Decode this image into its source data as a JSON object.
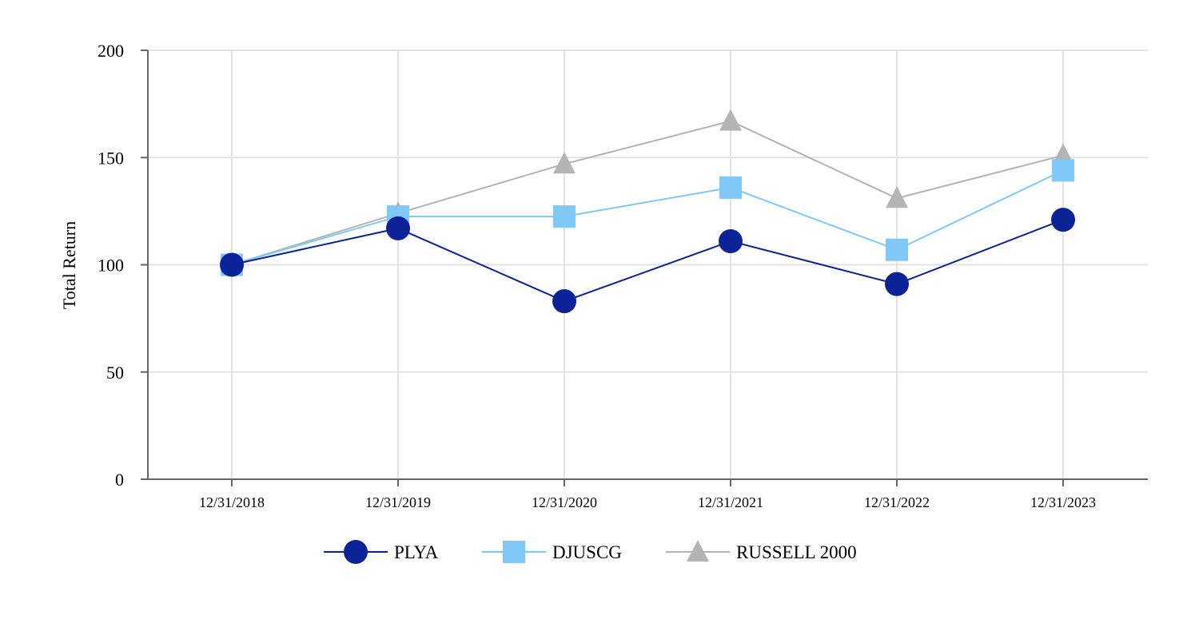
{
  "chart_data": {
    "type": "line",
    "title": "",
    "xlabel": "",
    "ylabel": "Total Return",
    "ylim": [
      0,
      200
    ],
    "yticks": [
      0,
      50,
      100,
      150,
      200
    ],
    "grid": true,
    "legend_position": "bottom-center",
    "categories": [
      "12/31/2018",
      "12/31/2019",
      "12/31/2020",
      "12/31/2021",
      "12/31/2022",
      "12/31/2023"
    ],
    "series": [
      {
        "name": "PLYA",
        "marker": "circle",
        "color": "#0b2396",
        "values": [
          100,
          117,
          83,
          111,
          91,
          121
        ]
      },
      {
        "name": "DJUSCG",
        "marker": "square",
        "color": "#7fc8f8",
        "values": [
          100,
          122.5,
          122.5,
          136,
          107,
          144
        ]
      },
      {
        "name": "RUSSELL 2000",
        "marker": "triangle",
        "color": "#b4b4b4",
        "values": [
          100,
          124,
          147,
          167,
          131,
          151
        ]
      }
    ]
  }
}
